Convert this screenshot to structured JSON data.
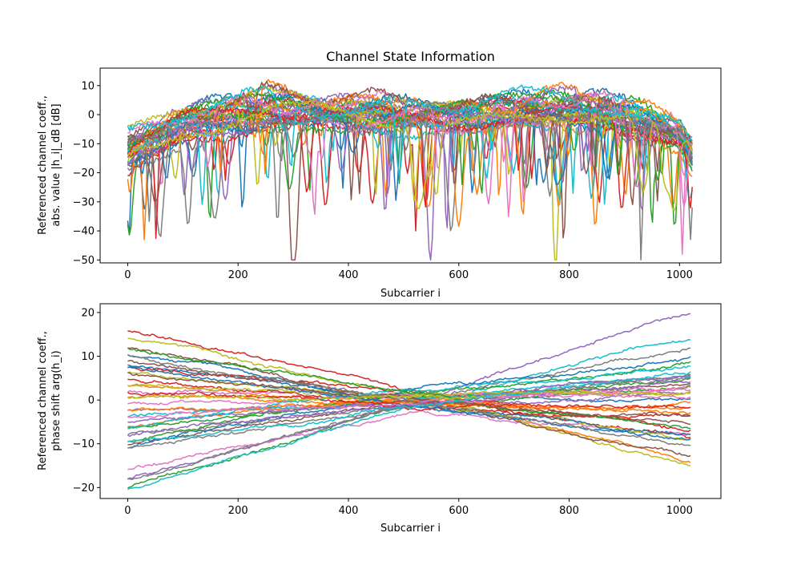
{
  "figure_title": "Channel State Information",
  "chart_data": [
    {
      "type": "line",
      "title": "Channel State Information",
      "xlabel": "Subcarrier i",
      "ylabel_lines": [
        "Referenced channel coeff.,",
        "abs. value |h_i|_dB [dB]"
      ],
      "xlim": [
        -50,
        1075
      ],
      "ylim": [
        -51,
        16
      ],
      "xticks": [
        0,
        200,
        400,
        600,
        800,
        1000
      ],
      "yticks": [
        10,
        0,
        -10,
        -20,
        -30,
        -40,
        -50
      ],
      "xtick_labels": [
        "0",
        "200",
        "400",
        "600",
        "800",
        "1000"
      ],
      "ytick_labels": [
        "10",
        "0",
        "−10",
        "−20",
        "−30",
        "−40",
        "−50"
      ],
      "grid": false,
      "legend": "none",
      "n_series": 40,
      "series_shape": "per-subcarrier magnitude: band edges near -5 to -15 dB, mid-band near 0 to 10 dB, frequent deep fades to about -45 dB",
      "profile": {
        "x": [
          0,
          30,
          60,
          100,
          150,
          200,
          250,
          300,
          350,
          400,
          450,
          500,
          550,
          600,
          650,
          700,
          750,
          800,
          850,
          900,
          950,
          1000,
          1023
        ],
        "upper": [
          -3,
          -2,
          0,
          3,
          5,
          7,
          10,
          9,
          8,
          7,
          7,
          6,
          6,
          6,
          7,
          8,
          9,
          10,
          9,
          6,
          3,
          0,
          -5
        ],
        "lower": [
          -25,
          -20,
          -18,
          -12,
          -10,
          -8,
          -8,
          -8,
          -8,
          -8,
          -8,
          -8,
          -8,
          -8,
          -8,
          -8,
          -8,
          -8,
          -8,
          -9,
          -12,
          -15,
          -25
        ]
      },
      "notable_dips": [
        {
          "x": 2,
          "y": -43
        },
        {
          "x": 30,
          "y": -43
        },
        {
          "x": 330,
          "y": -26
        },
        {
          "x": 522,
          "y": -40
        },
        {
          "x": 578,
          "y": -41
        },
        {
          "x": 790,
          "y": -44
        },
        {
          "x": 1005,
          "y": -48
        },
        {
          "x": 1020,
          "y": -43
        }
      ],
      "colors": [
        "#1f77b4",
        "#ff7f0e",
        "#2ca02c",
        "#d62728",
        "#9467bd",
        "#8c564b",
        "#e377c2",
        "#7f7f7f",
        "#bcbd22",
        "#17becf"
      ]
    },
    {
      "type": "line",
      "title": "",
      "xlabel": "Subcarrier i",
      "ylabel_lines": [
        "Referenced channel coeff.,",
        "phase shift arg(h_i)"
      ],
      "xlim": [
        -50,
        1075
      ],
      "ylim": [
        -22.5,
        22
      ],
      "xticks": [
        0,
        200,
        400,
        600,
        800,
        1000
      ],
      "yticks": [
        20,
        10,
        0,
        -10,
        -20
      ],
      "xtick_labels": [
        "0",
        "200",
        "400",
        "600",
        "800",
        "1000"
      ],
      "ytick_labels": [
        "20",
        "10",
        "0",
        "−10",
        "−20"
      ],
      "grid": false,
      "legend": "none",
      "n_series": 40,
      "series": [
        {
          "color": "#1f77b4",
          "values_at": {
            "0": 8,
            "512": 0,
            "1023": 1
          }
        },
        {
          "color": "#ff7f0e",
          "values_at": {
            "0": -6,
            "512": 1,
            "1023": -15
          }
        },
        {
          "color": "#2ca02c",
          "values_at": {
            "0": -20,
            "512": -1,
            "1023": 3
          }
        },
        {
          "color": "#d62728",
          "values_at": {
            "0": 15.5,
            "512": 2,
            "1023": -9.5
          }
        },
        {
          "color": "#9467bd",
          "values_at": {
            "0": -18,
            "512": -1,
            "1023": 20
          }
        },
        {
          "color": "#8c564b",
          "values_at": {
            "0": -10,
            "512": 0,
            "1023": 5
          }
        },
        {
          "color": "#e377c2",
          "values_at": {
            "0": -16,
            "512": -3,
            "1023": -8
          }
        },
        {
          "color": "#7f7f7f",
          "values_at": {
            "0": -18,
            "512": 0,
            "1023": 12
          }
        },
        {
          "color": "#bcbd22",
          "values_at": {
            "0": 14,
            "512": 1,
            "1023": -15
          }
        },
        {
          "color": "#17becf",
          "values_at": {
            "0": -20.5,
            "512": -2,
            "1023": 14
          }
        }
      ]
    }
  ]
}
